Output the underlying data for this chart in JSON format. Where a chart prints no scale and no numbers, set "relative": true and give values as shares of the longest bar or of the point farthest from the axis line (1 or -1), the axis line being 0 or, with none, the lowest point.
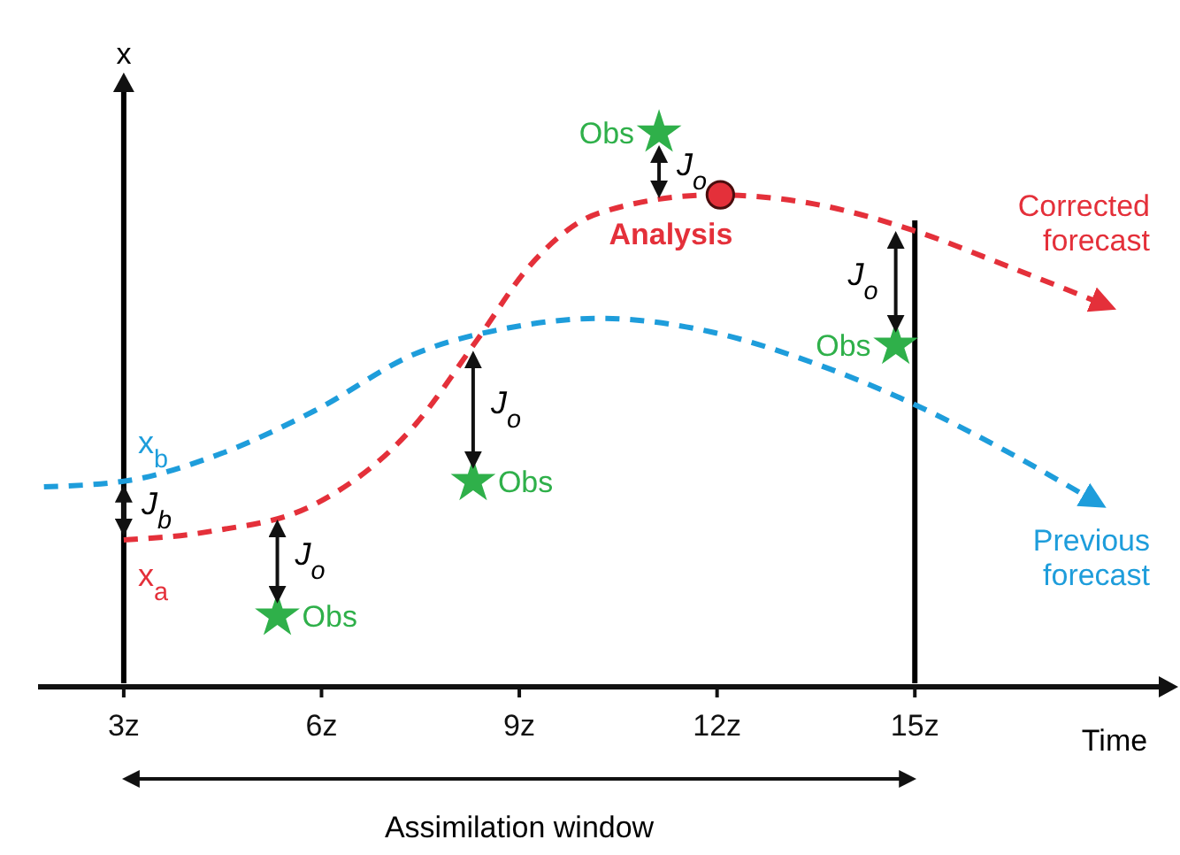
{
  "chart_data": {
    "type": "line",
    "relative": true,
    "xlabel": "Time",
    "ylabel": "x",
    "xlim": [
      1.7,
      18.7
    ],
    "xticks": [
      {
        "value": 3,
        "label": "3z"
      },
      {
        "value": 6,
        "label": "6z"
      },
      {
        "value": 9,
        "label": "9z"
      },
      {
        "value": 12,
        "label": "12z"
      },
      {
        "value": 15,
        "label": "15z"
      }
    ],
    "grid": false,
    "legend": false,
    "line_style": "dashed",
    "series": [
      {
        "name": "Previous forecast",
        "color": "#1e9ddb",
        "marker": "none",
        "x": [
          1.79,
          3,
          4.34,
          5.89,
          7.42,
          8.89,
          10.23,
          11.97,
          13.45,
          14.97,
          16.39,
          17.73
        ],
        "values": [
          0.361,
          0.371,
          0.415,
          0.498,
          0.601,
          0.649,
          0.665,
          0.639,
          0.585,
          0.511,
          0.425,
          0.335
        ]
      },
      {
        "name": "Corrected forecast",
        "color": "#e4303a",
        "marker": "none",
        "x": [
          3,
          4.34,
          5.89,
          7.42,
          8.36,
          9.16,
          10.23,
          11.97,
          13.45,
          14.97,
          16.39,
          17.87
        ],
        "values": [
          0.265,
          0.281,
          0.329,
          0.473,
          0.626,
          0.76,
          0.856,
          0.888,
          0.872,
          0.824,
          0.76,
          0.69
        ]
      },
      {
        "name": "Obs",
        "color": "#2fb04a",
        "type": "scatter",
        "marker": "star",
        "x": [
          5.33,
          8.3,
          11.12,
          14.71
        ],
        "values": [
          0.128,
          0.371,
          1.0,
          0.617
        ]
      },
      {
        "name": "Analysis",
        "color": "#e4303a",
        "type": "scatter",
        "marker": "circle",
        "x": [
          12.05
        ],
        "values": [
          0.888
        ]
      }
    ],
    "ref_lines": [
      {
        "axis": "x",
        "value": 3
      },
      {
        "axis": "x",
        "value": 15
      }
    ],
    "annotations": [
      "J$_{o}$",
      "J$_{o}$",
      "J$_{o}$",
      "J$_{o}$",
      "J$_{b}$",
      "x$_{b}$",
      "x$_{a}$",
      "Assimilation window"
    ]
  }
}
